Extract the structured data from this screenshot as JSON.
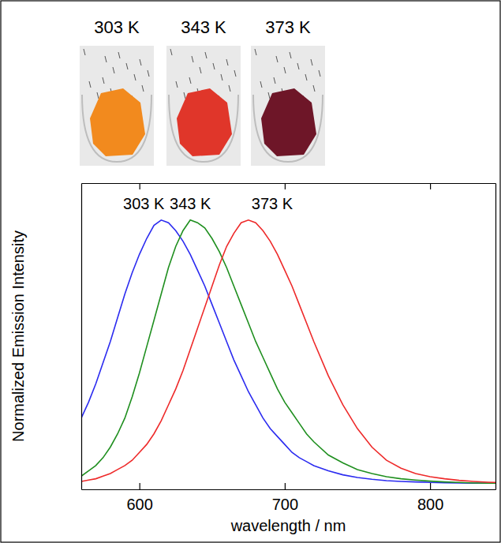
{
  "chart_data": {
    "type": "line",
    "x_label": "wavelength / nm",
    "y_label": "Normalized Emission Intensity",
    "x": [
      560,
      565,
      570,
      575,
      580,
      585,
      590,
      595,
      600,
      605,
      610,
      615,
      620,
      625,
      630,
      635,
      640,
      645,
      650,
      655,
      660,
      665,
      670,
      675,
      680,
      685,
      690,
      695,
      700,
      705,
      710,
      715,
      720,
      730,
      740,
      750,
      760,
      770,
      780,
      790,
      800,
      810,
      820,
      830,
      840,
      845
    ],
    "series": [
      {
        "name": "303 K",
        "color": "#2b2bf0",
        "values": [
          0.25,
          0.31,
          0.38,
          0.46,
          0.54,
          0.63,
          0.72,
          0.8,
          0.87,
          0.93,
          0.98,
          1.0,
          0.99,
          0.96,
          0.92,
          0.87,
          0.81,
          0.75,
          0.68,
          0.61,
          0.54,
          0.47,
          0.41,
          0.35,
          0.3,
          0.25,
          0.21,
          0.18,
          0.15,
          0.12,
          0.1,
          0.085,
          0.07,
          0.05,
          0.035,
          0.025,
          0.018,
          0.013,
          0.01,
          0.008,
          0.006,
          0.005,
          0.004,
          0.003,
          0.003,
          0.003
        ]
      },
      {
        "name": "343 K",
        "color": "#1f8f1f",
        "values": [
          0.03,
          0.05,
          0.07,
          0.1,
          0.14,
          0.19,
          0.25,
          0.33,
          0.42,
          0.52,
          0.62,
          0.72,
          0.82,
          0.9,
          0.96,
          1.0,
          0.99,
          0.97,
          0.93,
          0.88,
          0.82,
          0.75,
          0.68,
          0.61,
          0.54,
          0.48,
          0.42,
          0.36,
          0.31,
          0.27,
          0.23,
          0.19,
          0.16,
          0.11,
          0.08,
          0.055,
          0.04,
          0.028,
          0.02,
          0.015,
          0.011,
          0.008,
          0.006,
          0.004,
          0.003,
          0.003
        ]
      },
      {
        "name": "373 K",
        "color": "#ee2a2a",
        "values": [
          0.01,
          0.015,
          0.02,
          0.03,
          0.04,
          0.055,
          0.07,
          0.09,
          0.12,
          0.15,
          0.19,
          0.24,
          0.3,
          0.36,
          0.43,
          0.51,
          0.59,
          0.67,
          0.75,
          0.83,
          0.9,
          0.95,
          0.99,
          1.0,
          0.99,
          0.96,
          0.92,
          0.87,
          0.81,
          0.75,
          0.68,
          0.61,
          0.54,
          0.41,
          0.3,
          0.21,
          0.14,
          0.09,
          0.06,
          0.04,
          0.028,
          0.02,
          0.014,
          0.01,
          0.007,
          0.006
        ]
      }
    ],
    "xlim": [
      560,
      845
    ],
    "xticks": [
      600,
      700,
      800
    ],
    "ylim": [
      -0.02,
      1.14
    ],
    "tick_labels": "x",
    "grid": false
  }
}
